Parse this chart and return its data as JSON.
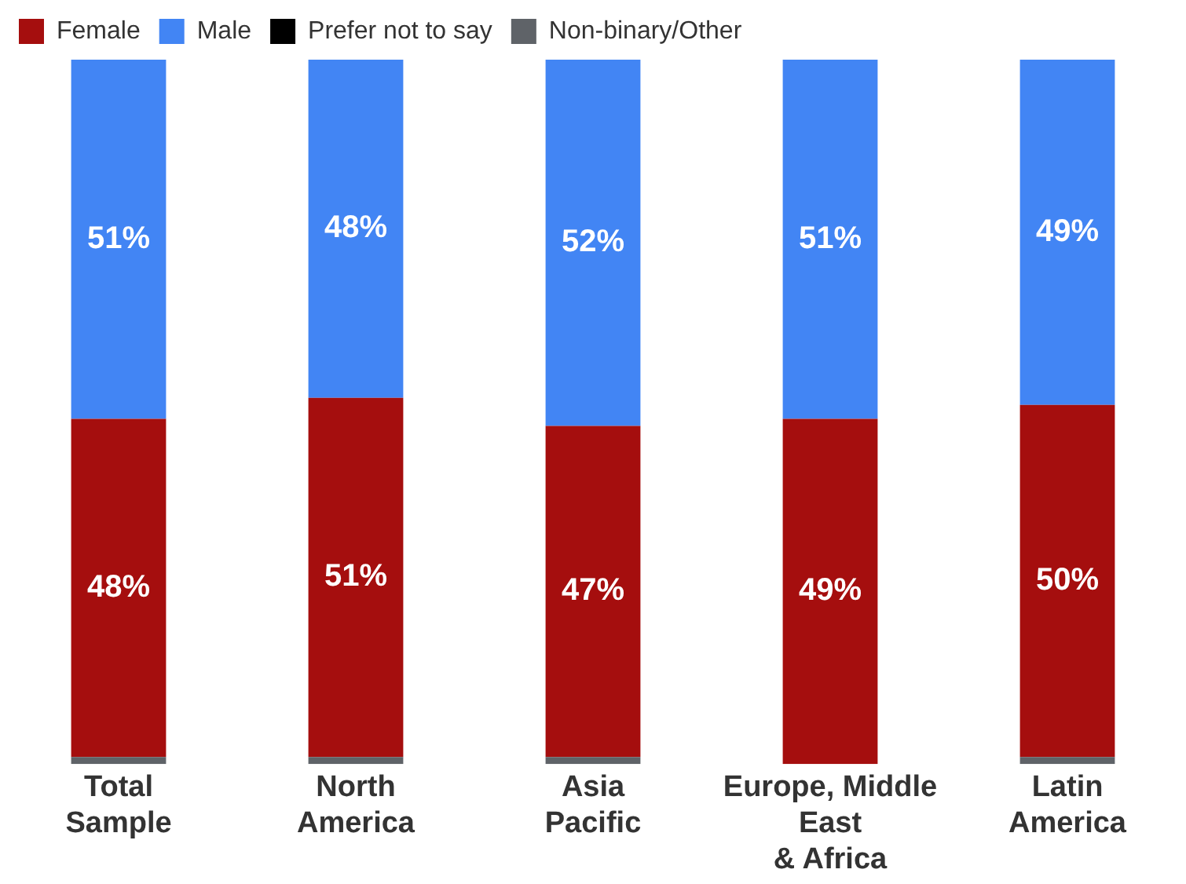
{
  "chart_data": {
    "type": "bar",
    "stacked": true,
    "legend": "top",
    "grid": false,
    "categories": [
      "Total\nSample",
      "North\nAmerica",
      "Asia\nPacific",
      "Europe, Middle\nEast\n& Africa",
      "Latin\nAmerica"
    ],
    "series": [
      {
        "name": "Non-binary/Other",
        "color": "#5f6368",
        "values": [
          1,
          1,
          1,
          0,
          1
        ]
      },
      {
        "name": "Prefer not to say",
        "color": "#000000",
        "values": [
          0,
          0,
          0,
          0,
          0
        ]
      },
      {
        "name": "Female",
        "color": "#a50e0e",
        "values": [
          48,
          51,
          47,
          49,
          50
        ],
        "value_labels": [
          "48%",
          "51%",
          "47%",
          "49%",
          "50%"
        ]
      },
      {
        "name": "Male",
        "color": "#4285f4",
        "values": [
          51,
          48,
          52,
          51,
          49
        ],
        "value_labels": [
          "51%",
          "48%",
          "52%",
          "51%",
          "49%"
        ]
      }
    ]
  }
}
